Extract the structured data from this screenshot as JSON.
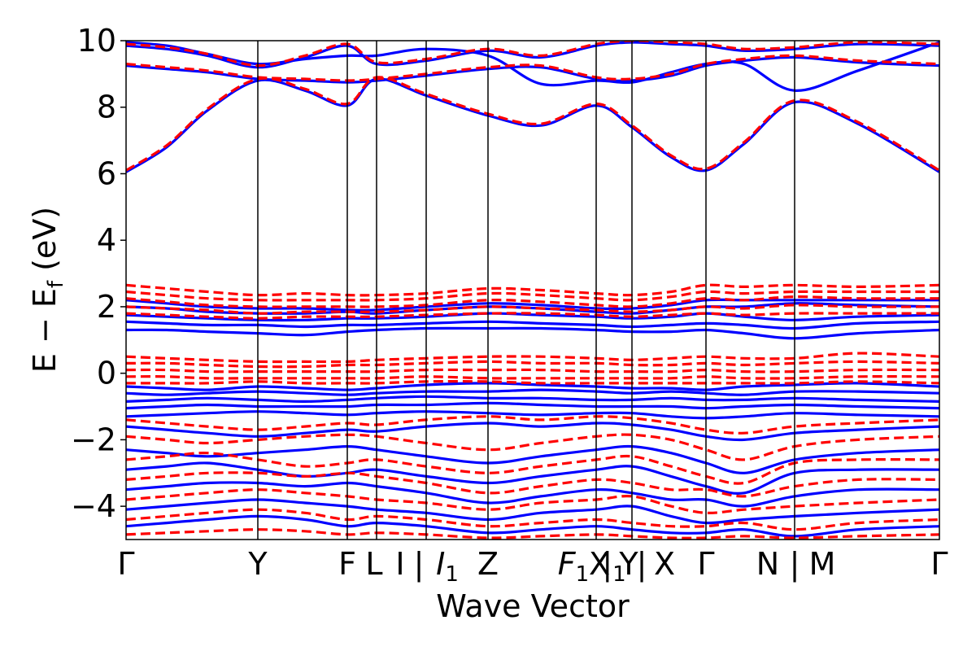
{
  "chart_data": {
    "type": "line",
    "title": "",
    "xlabel": "Wave Vector",
    "ylabel": "E − E_f (eV)",
    "ylabel_main": "E  −  E",
    "ylabel_sub": "f",
    "ylabel_tail": " (eV)",
    "ylim": [
      -5,
      10
    ],
    "xlim": [
      0,
      1
    ],
    "grid": false,
    "legend": "none",
    "yticks": [
      {
        "value": -4,
        "label": "−4"
      },
      {
        "value": -2,
        "label": "−2"
      },
      {
        "value": 0,
        "label": "0"
      },
      {
        "value": 2,
        "label": "2"
      },
      {
        "value": 4,
        "label": "4"
      },
      {
        "value": 6,
        "label": "6"
      },
      {
        "value": 8,
        "label": "8"
      },
      {
        "value": 10,
        "label": "10"
      }
    ],
    "kpoint_lines": [
      0.162,
      0.272,
      0.308,
      0.369,
      0.445,
      0.578,
      0.622,
      0.713,
      0.822
    ],
    "kpath_labels": [
      {
        "pos": 0.0,
        "text": "Γ"
      },
      {
        "pos": 0.162,
        "text": "Y"
      },
      {
        "pos": 0.272,
        "text": "F"
      },
      {
        "pos": 0.305,
        "text": "L"
      },
      {
        "pos": 0.337,
        "text": "I"
      },
      {
        "pos": 0.36,
        "text": "|"
      },
      {
        "pos": 0.395,
        "text": "I",
        "sub": "1"
      },
      {
        "pos": 0.445,
        "text": "Z"
      },
      {
        "pos": 0.55,
        "text": "F",
        "sub": "1"
      },
      {
        "pos": 0.582,
        "text": "X"
      },
      {
        "pos": 0.6,
        "text": "|",
        "sub": "1"
      },
      {
        "pos": 0.618,
        "text": "Y"
      },
      {
        "pos": 0.634,
        "text": "|"
      },
      {
        "pos": 0.662,
        "text": "X"
      },
      {
        "pos": 0.713,
        "text": "Γ"
      },
      {
        "pos": 0.789,
        "text": "N"
      },
      {
        "pos": 0.822,
        "text": "|"
      },
      {
        "pos": 0.856,
        "text": "M"
      },
      {
        "pos": 1.0,
        "text": "Γ"
      }
    ],
    "series": [
      {
        "style": "solid",
        "color": "#0000ff",
        "x": [
          0,
          0.05,
          0.1,
          0.162,
          0.22,
          0.272,
          0.308,
          0.369,
          0.445,
          0.51,
          0.578,
          0.622,
          0.67,
          0.713,
          0.76,
          0.822,
          0.9,
          1.0
        ],
        "bands": [
          [
            6.05,
            6.8,
            7.9,
            8.8,
            8.5,
            8.05,
            8.85,
            8.35,
            7.75,
            7.45,
            8.05,
            7.4,
            6.5,
            6.1,
            6.9,
            8.15,
            7.5,
            6.05
          ],
          [
            9.85,
            9.75,
            9.55,
            9.2,
            9.5,
            9.85,
            9.3,
            9.4,
            9.7,
            9.5,
            9.85,
            9.95,
            9.9,
            9.85,
            9.7,
            9.75,
            9.9,
            9.85
          ],
          [
            9.25,
            9.15,
            9.05,
            8.85,
            8.8,
            8.75,
            8.8,
            8.95,
            9.15,
            9.2,
            8.85,
            8.8,
            8.95,
            9.25,
            9.4,
            9.5,
            9.35,
            9.25
          ],
          [
            9.95,
            9.85,
            9.6,
            9.3,
            9.45,
            9.55,
            9.55,
            9.75,
            9.55,
            8.7,
            8.8,
            8.75,
            9.05,
            9.3,
            9.3,
            8.5,
            9.1,
            9.95
          ],
          [
            2.2,
            2.1,
            2.0,
            1.95,
            1.95,
            1.9,
            1.9,
            2.0,
            2.1,
            2.05,
            1.95,
            1.95,
            2.05,
            2.2,
            2.2,
            2.2,
            2.2,
            2.2
          ],
          [
            2.0,
            1.95,
            1.85,
            1.8,
            1.8,
            1.85,
            1.8,
            1.9,
            2.0,
            1.95,
            1.85,
            1.8,
            1.9,
            2.0,
            2.0,
            2.1,
            2.05,
            2.0
          ],
          [
            1.75,
            1.7,
            1.65,
            1.6,
            1.6,
            1.65,
            1.65,
            1.7,
            1.8,
            1.75,
            1.7,
            1.65,
            1.7,
            1.8,
            1.7,
            1.6,
            1.7,
            1.75
          ],
          [
            1.55,
            1.5,
            1.45,
            1.45,
            1.4,
            1.45,
            1.45,
            1.5,
            1.55,
            1.5,
            1.45,
            1.4,
            1.45,
            1.5,
            1.45,
            1.35,
            1.5,
            1.55
          ],
          [
            1.3,
            1.3,
            1.25,
            1.2,
            1.15,
            1.25,
            1.3,
            1.35,
            1.35,
            1.35,
            1.3,
            1.25,
            1.25,
            1.3,
            1.2,
            1.05,
            1.2,
            1.3
          ],
          [
            -0.4,
            -0.45,
            -0.5,
            -0.4,
            -0.45,
            -0.5,
            -0.45,
            -0.35,
            -0.3,
            -0.35,
            -0.4,
            -0.45,
            -0.45,
            -0.5,
            -0.4,
            -0.35,
            -0.3,
            -0.4
          ],
          [
            -0.6,
            -0.65,
            -0.6,
            -0.55,
            -0.6,
            -0.65,
            -0.6,
            -0.55,
            -0.55,
            -0.5,
            -0.55,
            -0.6,
            -0.55,
            -0.6,
            -0.65,
            -0.55,
            -0.55,
            -0.6
          ],
          [
            -0.85,
            -0.8,
            -0.75,
            -0.8,
            -0.85,
            -0.8,
            -0.75,
            -0.7,
            -0.75,
            -0.75,
            -0.8,
            -0.8,
            -0.75,
            -0.8,
            -0.8,
            -0.75,
            -0.8,
            -0.85
          ],
          [
            -1.05,
            -1.0,
            -0.95,
            -1.0,
            -1.0,
            -1.0,
            -0.95,
            -0.95,
            -0.9,
            -0.95,
            -1.0,
            -1.0,
            -1.0,
            -1.05,
            -1.0,
            -0.95,
            -1.0,
            -1.05
          ],
          [
            -1.3,
            -1.25,
            -1.2,
            -1.15,
            -1.2,
            -1.25,
            -1.2,
            -1.15,
            -1.2,
            -1.25,
            -1.2,
            -1.2,
            -1.3,
            -1.35,
            -1.3,
            -1.2,
            -1.25,
            -1.3
          ],
          [
            -1.6,
            -1.7,
            -1.8,
            -1.9,
            -1.8,
            -1.7,
            -1.75,
            -1.6,
            -1.5,
            -1.6,
            -1.5,
            -1.55,
            -1.7,
            -1.9,
            -2.0,
            -1.8,
            -1.7,
            -1.6
          ],
          [
            -2.3,
            -2.4,
            -2.5,
            -2.4,
            -2.3,
            -2.2,
            -2.3,
            -2.5,
            -2.7,
            -2.5,
            -2.3,
            -2.2,
            -2.4,
            -2.7,
            -3.0,
            -2.6,
            -2.4,
            -2.3
          ],
          [
            -2.9,
            -2.8,
            -2.7,
            -2.9,
            -3.1,
            -3.0,
            -2.9,
            -3.1,
            -3.3,
            -3.1,
            -2.9,
            -2.8,
            -3.1,
            -3.4,
            -3.6,
            -3.0,
            -2.9,
            -2.9
          ],
          [
            -3.5,
            -3.4,
            -3.3,
            -3.3,
            -3.4,
            -3.3,
            -3.4,
            -3.6,
            -3.9,
            -3.7,
            -3.5,
            -3.6,
            -3.8,
            -3.8,
            -4.0,
            -3.7,
            -3.5,
            -3.5
          ],
          [
            -4.1,
            -4.0,
            -3.9,
            -3.8,
            -3.9,
            -4.0,
            -4.1,
            -4.2,
            -4.4,
            -4.2,
            -4.1,
            -4.0,
            -4.3,
            -4.5,
            -4.4,
            -4.3,
            -4.2,
            -4.1
          ],
          [
            -4.6,
            -4.5,
            -4.4,
            -4.3,
            -4.4,
            -4.6,
            -4.5,
            -4.6,
            -4.8,
            -4.7,
            -4.6,
            -4.7,
            -4.8,
            -4.8,
            -4.7,
            -4.9,
            -4.7,
            -4.6
          ]
        ]
      },
      {
        "style": "dashed",
        "color": "#ff0000",
        "x": [
          0,
          0.05,
          0.1,
          0.162,
          0.22,
          0.272,
          0.308,
          0.369,
          0.445,
          0.51,
          0.578,
          0.622,
          0.67,
          0.713,
          0.76,
          0.822,
          0.9,
          1.0
        ],
        "bands": [
          [
            6.1,
            6.85,
            7.95,
            8.85,
            8.55,
            8.1,
            8.9,
            8.4,
            7.8,
            7.5,
            8.1,
            7.45,
            6.55,
            6.15,
            6.95,
            8.2,
            7.55,
            6.1
          ],
          [
            9.9,
            9.8,
            9.6,
            9.25,
            9.55,
            9.9,
            9.35,
            9.45,
            9.75,
            9.55,
            9.9,
            10.0,
            9.95,
            9.9,
            9.75,
            9.8,
            9.95,
            9.9
          ],
          [
            9.3,
            9.2,
            9.1,
            8.9,
            8.85,
            8.8,
            8.85,
            9.0,
            9.2,
            9.25,
            8.9,
            8.85,
            9.0,
            9.3,
            9.45,
            9.55,
            9.4,
            9.3
          ],
          [
            2.65,
            2.55,
            2.45,
            2.35,
            2.4,
            2.35,
            2.35,
            2.4,
            2.55,
            2.5,
            2.4,
            2.35,
            2.45,
            2.65,
            2.6,
            2.65,
            2.6,
            2.65
          ],
          [
            2.45,
            2.35,
            2.25,
            2.2,
            2.2,
            2.2,
            2.2,
            2.25,
            2.4,
            2.35,
            2.25,
            2.2,
            2.3,
            2.45,
            2.4,
            2.45,
            2.45,
            2.45
          ],
          [
            2.25,
            2.15,
            2.05,
            2.0,
            2.0,
            2.0,
            2.0,
            2.05,
            2.2,
            2.15,
            2.05,
            2.0,
            2.1,
            2.25,
            2.2,
            2.3,
            2.25,
            2.25
          ],
          [
            2.0,
            1.95,
            1.9,
            1.8,
            1.85,
            1.85,
            1.85,
            1.9,
            2.0,
            1.95,
            1.9,
            1.85,
            1.9,
            2.0,
            1.95,
            2.05,
            2.0,
            2.0
          ],
          [
            1.8,
            1.75,
            1.7,
            1.65,
            1.7,
            1.7,
            1.7,
            1.75,
            1.8,
            1.8,
            1.75,
            1.7,
            1.75,
            1.8,
            1.75,
            1.8,
            1.8,
            1.8
          ],
          [
            0.5,
            0.45,
            0.4,
            0.35,
            0.35,
            0.35,
            0.4,
            0.45,
            0.5,
            0.5,
            0.45,
            0.4,
            0.45,
            0.5,
            0.45,
            0.45,
            0.6,
            0.5
          ],
          [
            0.3,
            0.3,
            0.25,
            0.2,
            0.2,
            0.25,
            0.25,
            0.3,
            0.35,
            0.3,
            0.3,
            0.25,
            0.25,
            0.3,
            0.25,
            0.3,
            0.35,
            0.3
          ],
          [
            0.1,
            0.1,
            0.05,
            0.05,
            0.05,
            0.05,
            0.05,
            0.1,
            0.1,
            0.1,
            0.05,
            0.05,
            0.05,
            0.1,
            0.05,
            0.05,
            0.1,
            0.1
          ],
          [
            -0.1,
            -0.1,
            -0.15,
            -0.15,
            -0.15,
            -0.15,
            -0.15,
            -0.1,
            -0.15,
            -0.15,
            -0.15,
            -0.15,
            -0.15,
            -0.1,
            -0.15,
            -0.15,
            -0.1,
            -0.1
          ],
          [
            -0.3,
            -0.3,
            -0.3,
            -0.25,
            -0.3,
            -0.3,
            -0.3,
            -0.25,
            -0.25,
            -0.3,
            -0.3,
            -0.3,
            -0.3,
            -0.3,
            -0.3,
            -0.3,
            -0.25,
            -0.3
          ],
          [
            -1.4,
            -1.5,
            -1.6,
            -1.7,
            -1.6,
            -1.5,
            -1.55,
            -1.4,
            -1.3,
            -1.4,
            -1.3,
            -1.35,
            -1.5,
            -1.7,
            -1.8,
            -1.6,
            -1.5,
            -1.4
          ],
          [
            -1.9,
            -2.0,
            -2.1,
            -2.0,
            -1.9,
            -1.85,
            -1.9,
            -2.1,
            -2.3,
            -2.1,
            -1.9,
            -1.85,
            -2.0,
            -2.3,
            -2.6,
            -2.2,
            -2.0,
            -1.9
          ],
          [
            -2.6,
            -2.5,
            -2.4,
            -2.6,
            -2.8,
            -2.7,
            -2.6,
            -2.8,
            -3.0,
            -2.8,
            -2.6,
            -2.5,
            -2.8,
            -3.1,
            -3.3,
            -2.7,
            -2.6,
            -2.6
          ],
          [
            -3.2,
            -3.1,
            -3.0,
            -3.0,
            -3.1,
            -3.0,
            -3.1,
            -3.3,
            -3.6,
            -3.4,
            -3.2,
            -3.3,
            -3.5,
            -3.5,
            -3.7,
            -3.4,
            -3.2,
            -3.2
          ],
          [
            -3.8,
            -3.7,
            -3.6,
            -3.5,
            -3.6,
            -3.7,
            -3.8,
            -3.9,
            -4.1,
            -3.9,
            -3.8,
            -3.7,
            -4.0,
            -4.2,
            -4.1,
            -4.0,
            -3.9,
            -3.8
          ],
          [
            -4.4,
            -4.3,
            -4.2,
            -4.1,
            -4.2,
            -4.4,
            -4.3,
            -4.4,
            -4.6,
            -4.5,
            -4.4,
            -4.5,
            -4.6,
            -4.6,
            -4.5,
            -4.7,
            -4.5,
            -4.4
          ],
          [
            -4.85,
            -4.8,
            -4.75,
            -4.7,
            -4.75,
            -4.85,
            -4.8,
            -4.85,
            -4.95,
            -4.9,
            -4.85,
            -4.9,
            -4.95,
            -4.95,
            -4.9,
            -4.95,
            -4.9,
            -4.85
          ]
        ]
      }
    ]
  }
}
